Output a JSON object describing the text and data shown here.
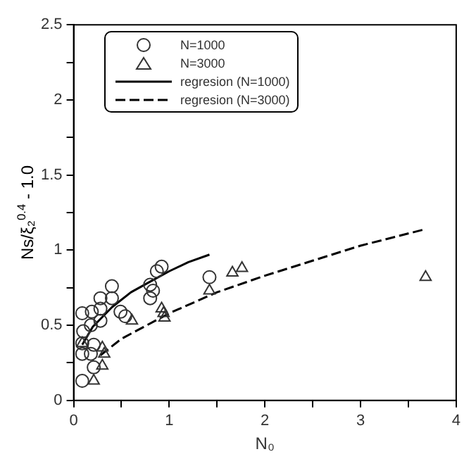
{
  "chart_data": {
    "type": "scatter",
    "xlabel": "N₀",
    "ylabel": "Ns/ξ₂$^{0.4}$ - 1.0",
    "xlim": [
      0,
      4
    ],
    "xticks": [
      0,
      {
        "value": 0.5,
        "label": null
      },
      1,
      {
        "value": 1.5,
        "label": null
      },
      2,
      {
        "value": 2.5,
        "label": null
      },
      3,
      {
        "value": 3.5,
        "label": null
      },
      4
    ],
    "ylim": [
      0,
      2.5
    ],
    "yticks": [
      0,
      {
        "value": 0.25,
        "label": null
      },
      0.5,
      {
        "value": 0.75,
        "label": null
      },
      1,
      {
        "value": 1.25,
        "label": null
      },
      1.5,
      {
        "value": 1.75,
        "label": null
      },
      2,
      {
        "value": 2.25,
        "label": null
      },
      2.5
    ],
    "grid": false,
    "legend": "top left",
    "series": [
      {
        "name": "N=1000",
        "type": "scatter",
        "marker": "circle",
        "color": "#333333",
        "x": [
          0.09,
          0.09,
          0.09,
          0.1,
          0.09,
          0.18,
          0.21,
          0.21,
          0.18,
          0.19,
          0.28,
          0.28,
          0.4,
          0.4,
          0.28,
          0.49,
          0.54,
          0.8,
          0.8,
          0.83,
          0.87,
          0.92,
          1.42
        ],
        "values": [
          0.13,
          0.31,
          0.38,
          0.46,
          0.58,
          0.31,
          0.37,
          0.22,
          0.5,
          0.59,
          0.61,
          0.68,
          0.68,
          0.76,
          0.53,
          0.59,
          0.56,
          0.68,
          0.77,
          0.73,
          0.86,
          0.89,
          0.82
        ]
      },
      {
        "name": "N=3000",
        "type": "scatter",
        "marker": "triangle",
        "color": "#333333",
        "x": [
          0.21,
          0.3,
          0.32,
          0.3,
          0.09,
          0.61,
          0.92,
          0.94,
          0.95,
          1.42,
          1.66,
          1.76,
          3.68
        ],
        "values": [
          0.13,
          0.23,
          0.31,
          0.35,
          0.38,
          0.53,
          0.61,
          0.58,
          0.55,
          0.73,
          0.85,
          0.88,
          0.82
        ]
      },
      {
        "name": "regresion (N=1000)",
        "type": "line",
        "marker": "none",
        "line_style": "solid",
        "color": "#000000",
        "x": [
          0.09,
          0.2,
          0.4,
          0.6,
          0.8,
          1.0,
          1.2,
          1.42
        ],
        "values": [
          0.37,
          0.49,
          0.62,
          0.72,
          0.79,
          0.86,
          0.92,
          0.97
        ]
      },
      {
        "name": "regresion (N=3000)",
        "type": "line",
        "marker": "none",
        "line_style": "dashed",
        "color": "#000000",
        "x": [
          0.28,
          0.5,
          1,
          1.5,
          2,
          2.5,
          3,
          3.68
        ],
        "values": [
          0.3,
          0.41,
          0.58,
          0.72,
          0.83,
          0.93,
          1.03,
          1.14
        ]
      }
    ]
  }
}
